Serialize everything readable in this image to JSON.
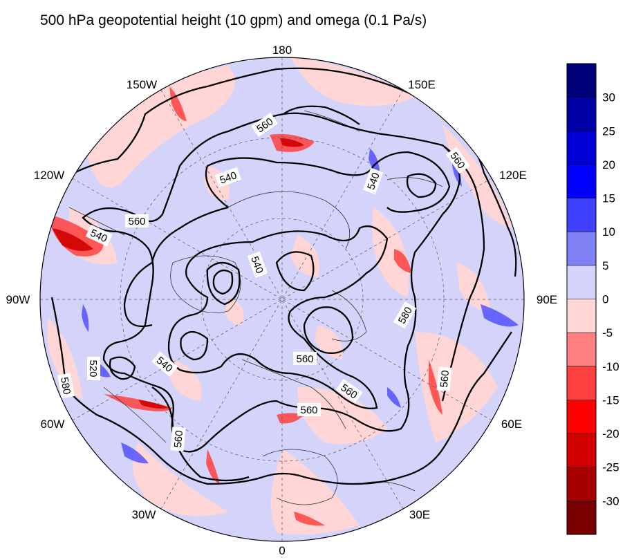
{
  "title": "500 hPa geopotential height (10 gpm) and omega (0.1 Pa/s)",
  "colors": {
    "background_blue": "#d4d4fb",
    "background_pink": "#ffd5d5",
    "contour": "#000000",
    "coast": "#333333"
  },
  "longitude_labels": [
    "180",
    "150E",
    "120E",
    "90E",
    "60E",
    "30E",
    "0",
    "30W",
    "60W",
    "90W",
    "120W",
    "150W"
  ],
  "chart_data": {
    "type": "heatmap",
    "projection": "north polar stereographic",
    "colorbar": {
      "ticks": [
        "30",
        "25",
        "20",
        "15",
        "10",
        "5",
        "0",
        "-5",
        "-10",
        "-15",
        "-20",
        "-25",
        "-30"
      ],
      "colors": [
        "#00007a",
        "#0000a8",
        "#0000d6",
        "#0000ff",
        "#4040ff",
        "#8080f5",
        "#d4d4fb",
        "#ffd5d5",
        "#ff8080",
        "#ff4040",
        "#ff0000",
        "#d00000",
        "#a80000",
        "#7a0000"
      ]
    },
    "contour_labels": [
      "560",
      "560",
      "560",
      "540",
      "540",
      "540",
      "540",
      "520",
      "540",
      "560",
      "560",
      "560",
      "580",
      "580",
      "560",
      "560"
    ]
  }
}
